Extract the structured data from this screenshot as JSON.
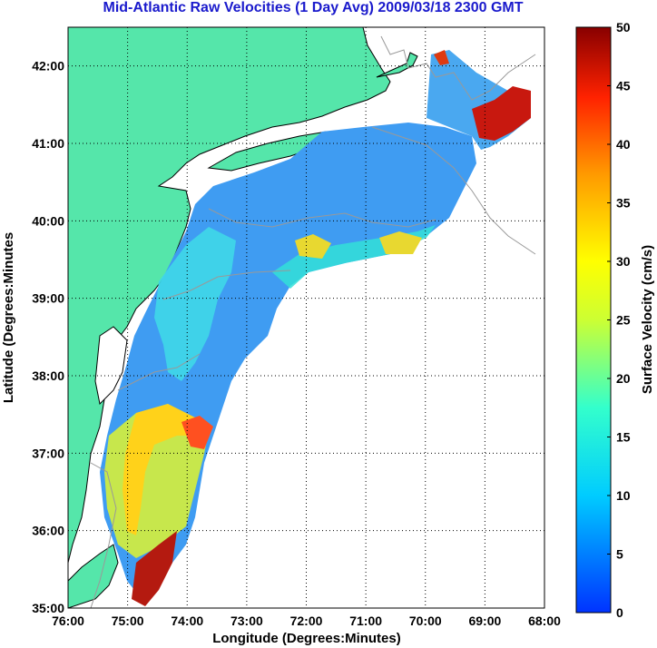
{
  "title": "Mid-Atlantic Raw Velocities (1 Day Avg) 2009/03/18 2300 GMT",
  "chart_data": {
    "type": "heatmap",
    "title": "Mid-Atlantic Raw Velocities (1 Day Avg) 2009/03/18 2300 GMT",
    "xlabel": "Longitude (Degrees:Minutes)",
    "ylabel": "Latitude (Degrees:Minutes",
    "xlim": [
      -76,
      -68
    ],
    "ylim": [
      35,
      42.5
    ],
    "x_ticks": [
      "76:00",
      "75:00",
      "74:00",
      "73:00",
      "72:00",
      "71:00",
      "70:00",
      "69:00",
      "68:00"
    ],
    "y_ticks": [
      "35:00",
      "36:00",
      "37:00",
      "38:00",
      "39:00",
      "40:00",
      "41:00",
      "42:00"
    ],
    "grid": true,
    "colorbar": {
      "label": "Surface Velocity (cm/s)",
      "range": [
        0,
        50
      ],
      "ticks": [
        "0",
        "5",
        "10",
        "15",
        "20",
        "25",
        "30",
        "35",
        "40",
        "45",
        "50"
      ],
      "colormap": "jet"
    },
    "colors": {
      "land": "#55e6aa",
      "background": "#ffffff",
      "grid": "#000000",
      "bathymetry": "#999999"
    }
  }
}
